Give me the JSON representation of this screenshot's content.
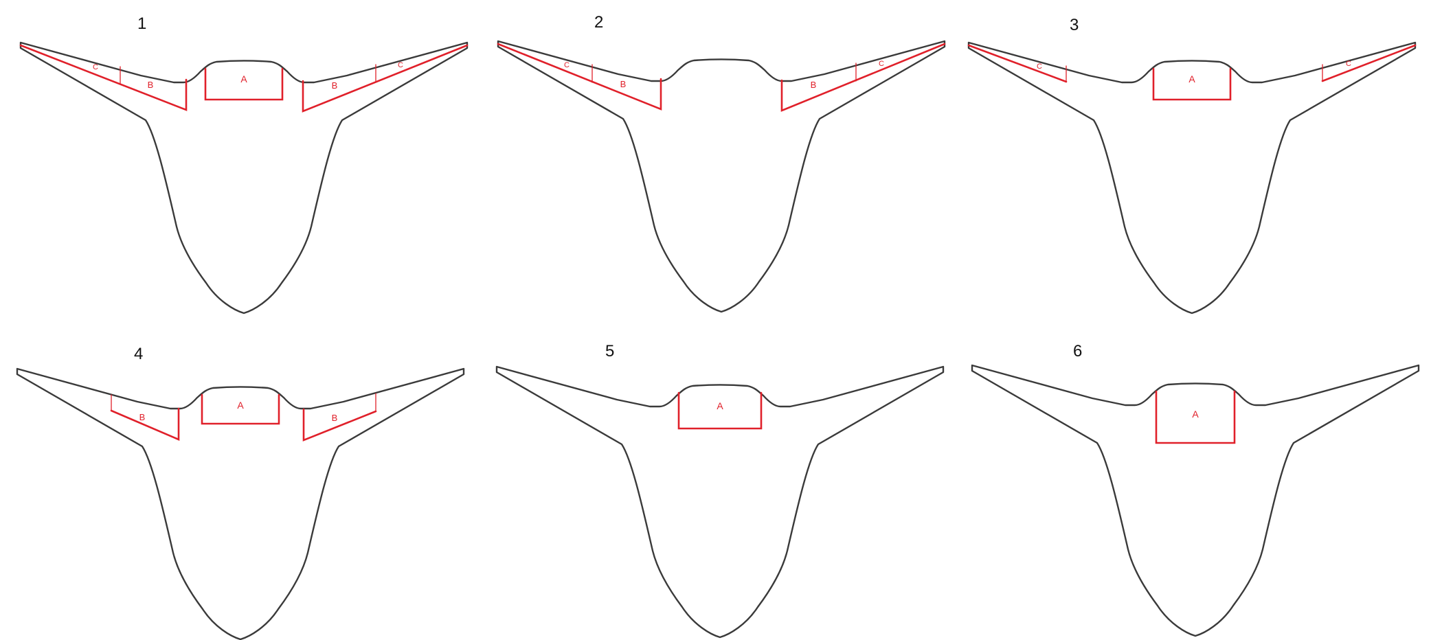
{
  "colors": {
    "outline": "#3a3a3a",
    "highlight": "#e0202a",
    "text": "#111111"
  },
  "panels": [
    {
      "number": "1",
      "regions": [
        "A",
        "B",
        "C"
      ],
      "labels": {
        "a": "A",
        "b": "B",
        "c": "C"
      }
    },
    {
      "number": "2",
      "regions": [
        "B",
        "C"
      ],
      "labels": {
        "b": "B",
        "c": "C"
      }
    },
    {
      "number": "3",
      "regions": [
        "A",
        "C"
      ],
      "labels": {
        "a": "A",
        "c": "C"
      }
    },
    {
      "number": "4",
      "regions": [
        "A",
        "B"
      ],
      "labels": {
        "a": "A",
        "b": "B"
      }
    },
    {
      "number": "5",
      "regions": [
        "A"
      ],
      "labels": {
        "a": "A"
      }
    },
    {
      "number": "6",
      "regions": [
        "A-deep"
      ],
      "labels": {
        "a": "A"
      }
    }
  ]
}
